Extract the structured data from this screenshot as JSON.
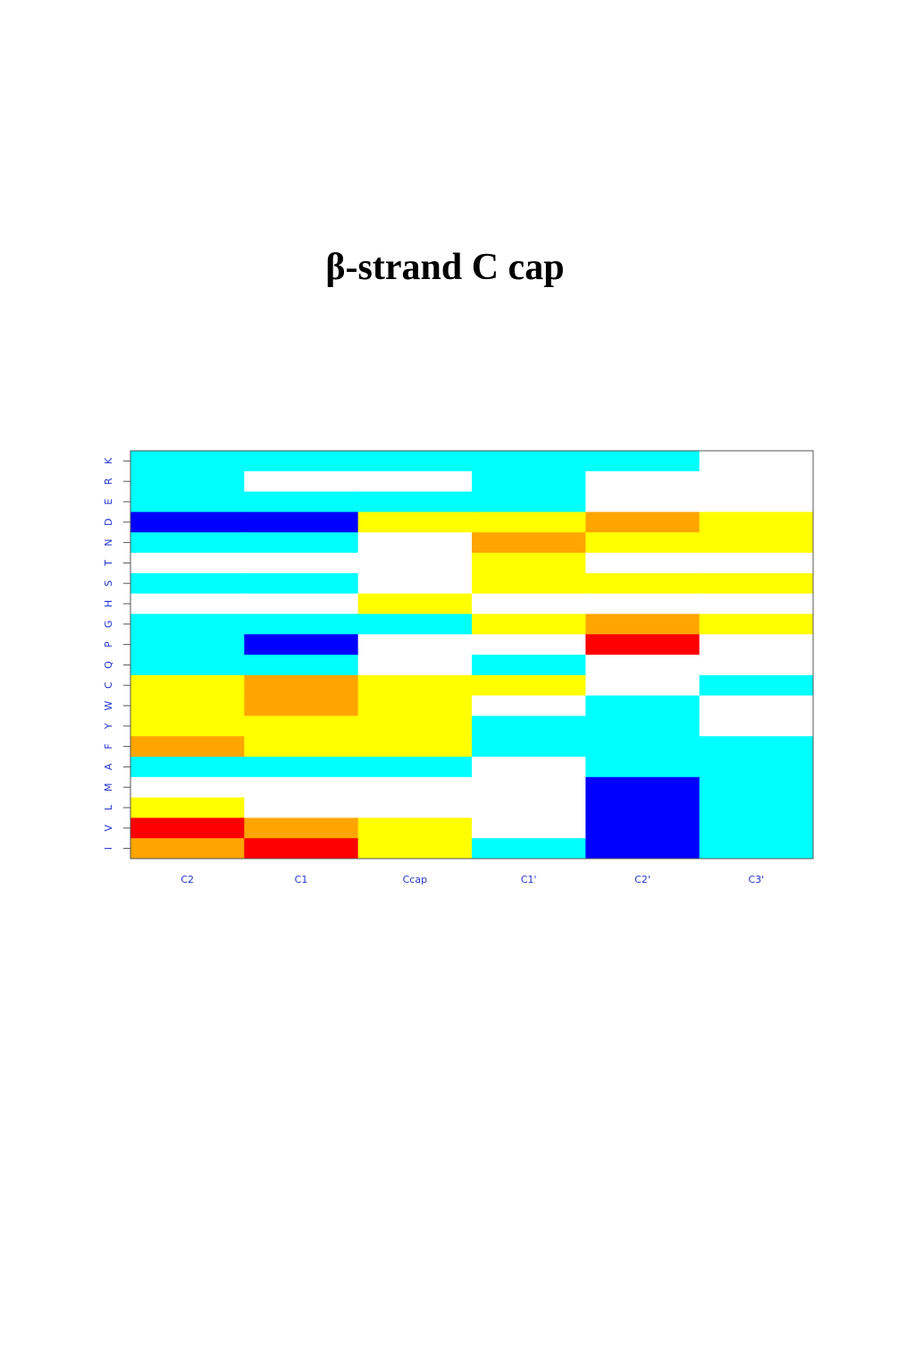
{
  "chart_data": {
    "type": "heatmap",
    "title": "β-strand C cap",
    "x": [
      "C2",
      "C1",
      "Ccap",
      "C1'",
      "C2'",
      "C3'"
    ],
    "y": [
      "K",
      "R",
      "E",
      "D",
      "N",
      "T",
      "S",
      "H",
      "G",
      "P",
      "Q",
      "C",
      "W",
      "Y",
      "F",
      "A",
      "M",
      "L",
      "V",
      "I"
    ],
    "colors": [
      [
        "cyan",
        "cyan",
        "cyan",
        "cyan",
        "cyan",
        "white"
      ],
      [
        "cyan",
        "white",
        "white",
        "cyan",
        "white",
        "white"
      ],
      [
        "cyan",
        "cyan",
        "cyan",
        "cyan",
        "white",
        "white"
      ],
      [
        "blue",
        "blue",
        "yellow",
        "yellow",
        "orange",
        "yellow"
      ],
      [
        "cyan",
        "cyan",
        "white",
        "orange",
        "yellow",
        "yellow"
      ],
      [
        "white",
        "white",
        "white",
        "yellow",
        "white",
        "white"
      ],
      [
        "cyan",
        "cyan",
        "white",
        "yellow",
        "yellow",
        "yellow"
      ],
      [
        "white",
        "white",
        "yellow",
        "white",
        "white",
        "white"
      ],
      [
        "cyan",
        "cyan",
        "cyan",
        "yellow",
        "orange",
        "yellow"
      ],
      [
        "cyan",
        "blue",
        "white",
        "white",
        "red",
        "white"
      ],
      [
        "cyan",
        "cyan",
        "white",
        "cyan",
        "white",
        "white"
      ],
      [
        "yellow",
        "orange",
        "yellow",
        "yellow",
        "white",
        "cyan"
      ],
      [
        "yellow",
        "orange",
        "yellow",
        "white",
        "cyan",
        "white"
      ],
      [
        "yellow",
        "yellow",
        "yellow",
        "cyan",
        "cyan",
        "white"
      ],
      [
        "orange",
        "yellow",
        "yellow",
        "cyan",
        "cyan",
        "cyan"
      ],
      [
        "cyan",
        "cyan",
        "cyan",
        "white",
        "cyan",
        "cyan"
      ],
      [
        "white",
        "white",
        "white",
        "white",
        "blue",
        "cyan"
      ],
      [
        "yellow",
        "white",
        "white",
        "white",
        "blue",
        "cyan"
      ],
      [
        "red",
        "orange",
        "yellow",
        "white",
        "blue",
        "cyan"
      ],
      [
        "orange",
        "red",
        "yellow",
        "cyan",
        "blue",
        "cyan"
      ]
    ],
    "label_color": "#2233cc"
  }
}
